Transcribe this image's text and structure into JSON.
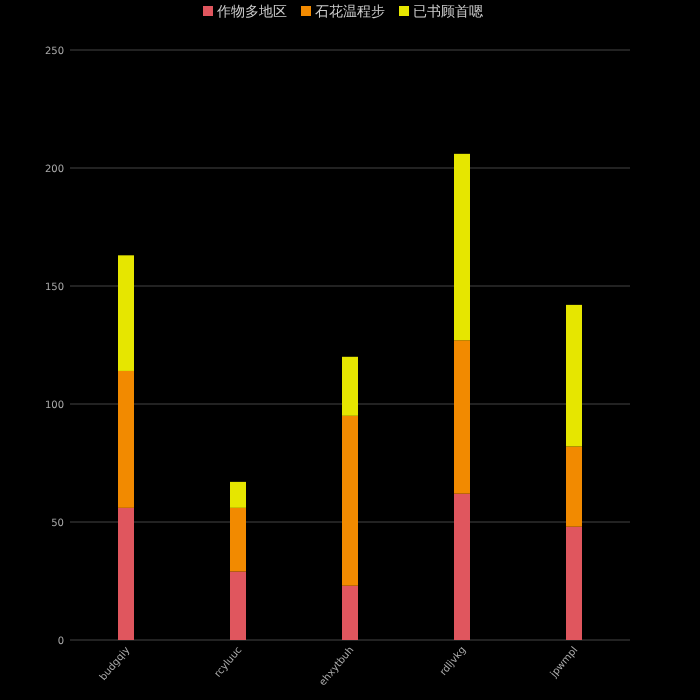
{
  "chart_data": {
    "type": "bar",
    "stacked": true,
    "categories": [
      "budgqiy",
      "rcyluuc",
      "ehxytbuh",
      "rdljvkg",
      "jpwmpl"
    ],
    "series": [
      {
        "name": "作物多地区",
        "color": "#e0565e",
        "values": [
          56,
          29,
          23,
          62,
          48
        ]
      },
      {
        "name": "石花温程步",
        "color": "#f28a00",
        "values": [
          58,
          27,
          72,
          65,
          34
        ]
      },
      {
        "name": "已书顾首嗯",
        "color": "#e6e600",
        "values": [
          49,
          11,
          25,
          79,
          60
        ]
      }
    ],
    "ylim": [
      0,
      250
    ],
    "yticks": [
      0,
      50,
      100,
      150,
      200,
      250
    ],
    "grid": "y",
    "legend": "top"
  }
}
